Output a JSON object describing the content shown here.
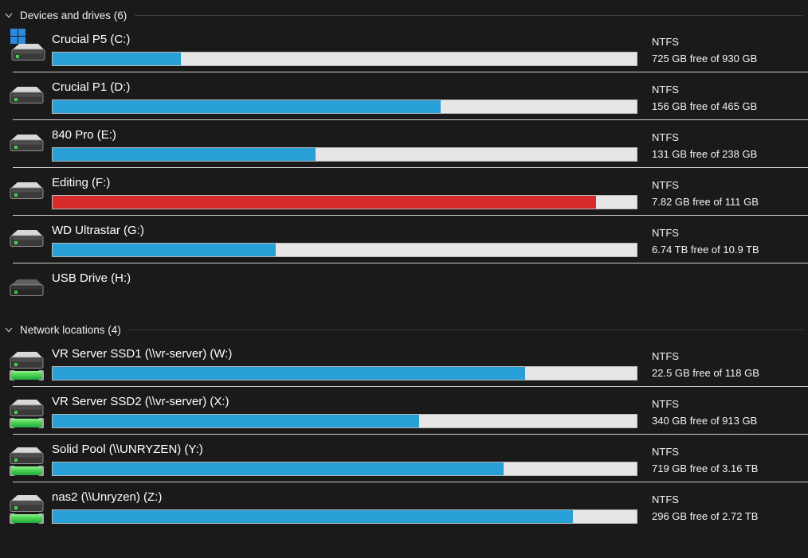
{
  "colors": {
    "background": "#1a1a1a",
    "accent_blue": "#299fd8",
    "alert_red": "#d62a2b",
    "bar_track": "#e6e6e6",
    "bar_border": "#b9b9b9",
    "row_separator": "#cfcfcf",
    "header_rule": "#3c3c3c",
    "network_pipe_green": "#3fcf4f",
    "windows_logo_blue": "#2e8ade"
  },
  "sections": [
    {
      "label": "Devices and drives (6)",
      "chevron_icon": "chevron-down-icon",
      "drives": [
        {
          "name": "Crucial P5 (C:)",
          "filesystem": "NTFS",
          "free_text": "725 GB free of 930 GB",
          "used_percent": 22.0,
          "bar_color": "#299fd8",
          "icon": "windows-system-drive-icon"
        },
        {
          "name": "Crucial P1 (D:)",
          "filesystem": "NTFS",
          "free_text": "156 GB free of 465 GB",
          "used_percent": 66.4,
          "bar_color": "#299fd8",
          "icon": "hard-drive-icon"
        },
        {
          "name": "840 Pro (E:)",
          "filesystem": "NTFS",
          "free_text": "131 GB free of 238 GB",
          "used_percent": 45.0,
          "bar_color": "#299fd8",
          "icon": "hard-drive-icon"
        },
        {
          "name": "Editing (F:)",
          "filesystem": "NTFS",
          "free_text": "7.82 GB free of 111 GB",
          "used_percent": 93.0,
          "bar_color": "#d62a2b",
          "icon": "hard-drive-icon"
        },
        {
          "name": "WD Ultrastar (G:)",
          "filesystem": "NTFS",
          "free_text": "6.74 TB free of 10.9 TB",
          "used_percent": 38.2,
          "bar_color": "#299fd8",
          "icon": "hard-drive-icon"
        },
        {
          "name": "USB Drive (H:)",
          "filesystem": null,
          "free_text": null,
          "used_percent": null,
          "bar_color": null,
          "icon": "usb-drive-icon"
        }
      ]
    },
    {
      "label": "Network locations (4)",
      "chevron_icon": "chevron-down-icon",
      "drives": [
        {
          "name": "VR Server SSD1 (\\\\vr-server) (W:)",
          "filesystem": "NTFS",
          "free_text": "22.5 GB free of 118 GB",
          "used_percent": 80.9,
          "bar_color": "#299fd8",
          "icon": "network-drive-icon"
        },
        {
          "name": "VR Server SSD2 (\\\\vr-server) (X:)",
          "filesystem": "NTFS",
          "free_text": "340 GB free of 913 GB",
          "used_percent": 62.8,
          "bar_color": "#299fd8",
          "icon": "network-drive-icon"
        },
        {
          "name": "Solid Pool (\\\\UNRYZEN) (Y:)",
          "filesystem": "NTFS",
          "free_text": "719 GB free of 3.16 TB",
          "used_percent": 77.2,
          "bar_color": "#299fd8",
          "icon": "network-drive-icon"
        },
        {
          "name": "nas2 (\\\\Unryzen) (Z:)",
          "filesystem": "NTFS",
          "free_text": "296 GB free of 2.72 TB",
          "used_percent": 89.1,
          "bar_color": "#299fd8",
          "icon": "network-drive-icon"
        }
      ]
    }
  ]
}
